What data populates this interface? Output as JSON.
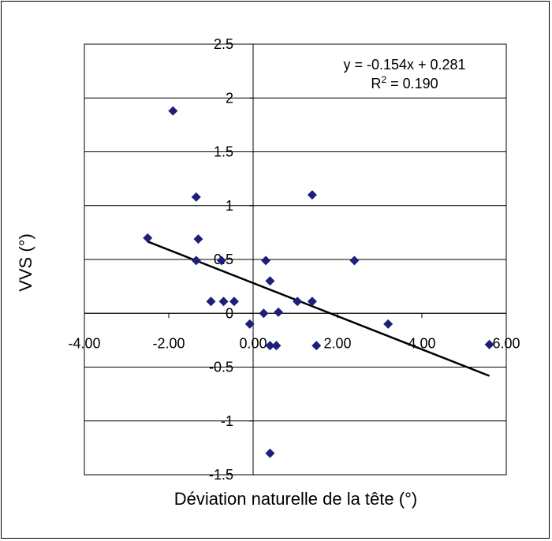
{
  "chart_data": {
    "type": "scatter",
    "xlabel": "Déviation naturelle de la tête (°)",
    "ylabel": "VVS (°)",
    "xlim": [
      -4,
      6
    ],
    "ylim": [
      -1.5,
      2.5
    ],
    "x_ticks": [
      "-4.00",
      "-2.00",
      "0.00",
      "2.00",
      "4.00",
      "6.00"
    ],
    "y_ticks": [
      "2.5",
      "2",
      "1.5",
      "1",
      "0.5",
      "0",
      "-0.5",
      "-1",
      "-1.5"
    ],
    "grid": "horizontal",
    "marker_color": "#1f1f7a",
    "trendline": {
      "slope": -0.154,
      "intercept": 0.281,
      "x_range": [
        -2.5,
        5.6
      ],
      "equation": "y = -0.154x + 0.281",
      "r2_label": "R",
      "r2_sup": "2",
      "r2_value": " = 0.190"
    },
    "points": [
      {
        "x": -1.9,
        "y": 1.88
      },
      {
        "x": -1.35,
        "y": 1.08
      },
      {
        "x": 1.4,
        "y": 1.1
      },
      {
        "x": -2.5,
        "y": 0.7
      },
      {
        "x": -1.3,
        "y": 0.69
      },
      {
        "x": -1.35,
        "y": 0.49
      },
      {
        "x": -0.75,
        "y": 0.49
      },
      {
        "x": 0.3,
        "y": 0.49
      },
      {
        "x": 2.4,
        "y": 0.49
      },
      {
        "x": 0.4,
        "y": 0.3
      },
      {
        "x": -1.0,
        "y": 0.11
      },
      {
        "x": -0.7,
        "y": 0.11
      },
      {
        "x": -0.45,
        "y": 0.11
      },
      {
        "x": 1.05,
        "y": 0.11
      },
      {
        "x": 1.4,
        "y": 0.11
      },
      {
        "x": 0.25,
        "y": 0.0
      },
      {
        "x": 0.6,
        "y": 0.01
      },
      {
        "x": -0.08,
        "y": -0.1
      },
      {
        "x": 3.2,
        "y": -0.1
      },
      {
        "x": 0.4,
        "y": -0.3
      },
      {
        "x": 0.55,
        "y": -0.3
      },
      {
        "x": 1.5,
        "y": -0.3
      },
      {
        "x": 5.6,
        "y": -0.29
      },
      {
        "x": 0.4,
        "y": -1.3
      }
    ]
  }
}
